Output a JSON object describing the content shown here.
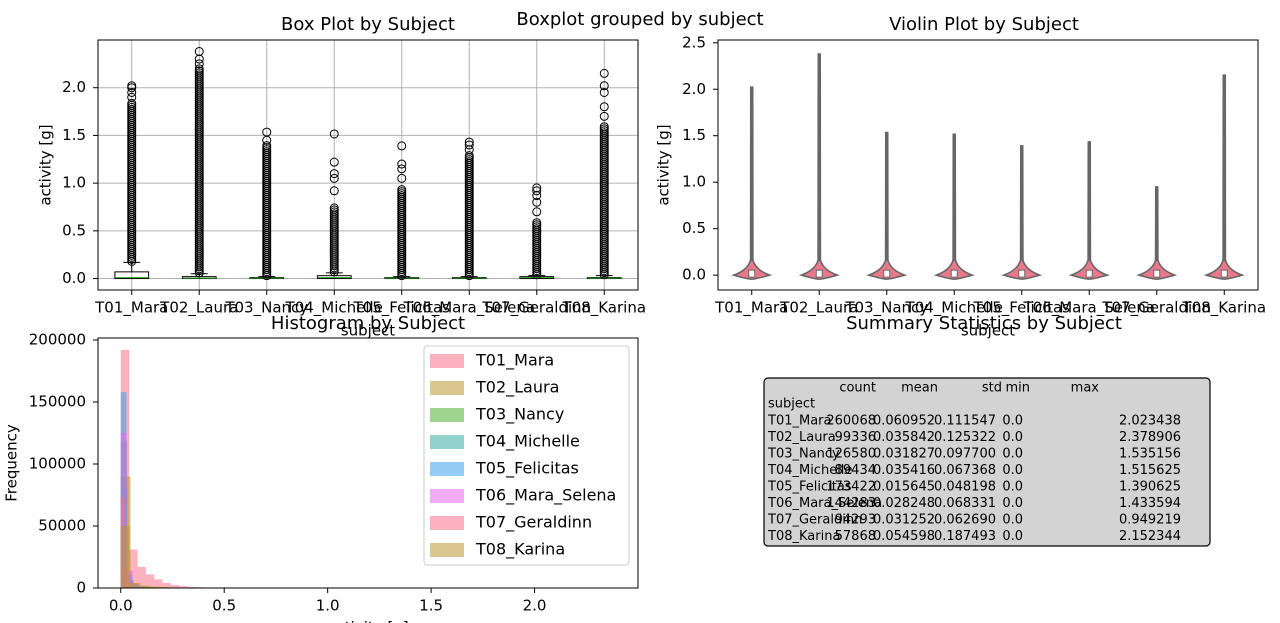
{
  "suptitle": "Boxplot grouped by subject",
  "chart_data": [
    {
      "type": "box",
      "title": "Box Plot by Subject",
      "xlabel": "subject",
      "ylabel": "activity [g]",
      "categories": [
        "T01_Mara",
        "T02_Laura",
        "T03_Nancy",
        "T04_Michelle",
        "T05_Felicitas",
        "T06_Mara_Selena",
        "T07_Geraldinn",
        "T08_Karina"
      ],
      "boxes": [
        {
          "whislo": 0.0,
          "q1": 0.0,
          "med": 0.01,
          "q3": 0.07,
          "whishi": 0.17,
          "flier_range": [
            0.18,
            1.85
          ],
          "fliers": [
            1.9,
            1.95,
            2.0,
            2.02
          ]
        },
        {
          "whislo": 0.0,
          "q1": 0.0,
          "med": 0.005,
          "q3": 0.02,
          "whishi": 0.05,
          "flier_range": [
            0.06,
            2.2
          ],
          "fliers": [
            2.25,
            2.3,
            2.38
          ]
        },
        {
          "whislo": 0.0,
          "q1": 0.0,
          "med": 0.005,
          "q3": 0.01,
          "whishi": 0.02,
          "flier_range": [
            0.03,
            1.4
          ],
          "fliers": [
            1.45,
            1.535
          ]
        },
        {
          "whislo": 0.0,
          "q1": 0.0,
          "med": 0.01,
          "q3": 0.03,
          "whishi": 0.06,
          "flier_range": [
            0.07,
            0.75
          ],
          "fliers": [
            0.92,
            1.05,
            1.1,
            1.22,
            1.515
          ]
        },
        {
          "whislo": 0.0,
          "q1": 0.0,
          "med": 0.005,
          "q3": 0.01,
          "whishi": 0.02,
          "flier_range": [
            0.03,
            0.95
          ],
          "fliers": [
            1.05,
            1.15,
            1.2,
            1.39
          ]
        },
        {
          "whislo": 0.0,
          "q1": 0.0,
          "med": 0.005,
          "q3": 0.01,
          "whishi": 0.02,
          "flier_range": [
            0.03,
            1.3
          ],
          "fliers": [
            1.35,
            1.4,
            1.43
          ]
        },
        {
          "whislo": 0.0,
          "q1": 0.0,
          "med": 0.01,
          "q3": 0.02,
          "whishi": 0.03,
          "flier_range": [
            0.04,
            0.6
          ],
          "fliers": [
            0.7,
            0.8,
            0.87,
            0.92,
            0.95
          ]
        },
        {
          "whislo": 0.0,
          "q1": 0.0,
          "med": 0.005,
          "q3": 0.01,
          "whishi": 0.03,
          "flier_range": [
            0.04,
            1.6
          ],
          "fliers": [
            1.7,
            1.8,
            1.95,
            2.02,
            2.15
          ]
        }
      ],
      "ylim": [
        -0.12,
        2.5
      ],
      "yticks": [
        {
          "value": 0,
          "label": "0.0"
        },
        0.5,
        {
          "value": 1,
          "label": "1.0"
        },
        1.5,
        {
          "value": 2,
          "label": "2.0"
        }
      ],
      "grid": true
    },
    {
      "type": "violin",
      "title": "Violin Plot by Subject",
      "xlabel": "subject",
      "ylabel": "activity [g]",
      "categories": [
        "T01_Mara",
        "T02_Laura",
        "T03_Nancy",
        "T04_Michelle",
        "T05_Felicitas",
        "T06_Mara_Selena",
        "T07_Geraldinn",
        "T08_Karina"
      ],
      "values": [
        2.023438,
        2.378906,
        1.535156,
        1.515625,
        1.390625,
        1.433594,
        0.949219,
        2.152344
      ],
      "color": "#e8788a",
      "ylim": [
        -0.16,
        2.53
      ],
      "yticks": [
        {
          "value": 0,
          "label": "0.0"
        },
        0.5,
        {
          "value": 1,
          "label": "1.0"
        },
        1.5,
        {
          "value": 2,
          "label": "2.0"
        },
        2.5
      ],
      "grid": false
    },
    {
      "type": "histogram",
      "title": "Histogram by Subject",
      "xlabel": "activity [g]",
      "ylabel": "Frequency",
      "alpha": 0.55,
      "legend": "upper right",
      "series": [
        {
          "name": "T01_Mara",
          "color": "#f77189",
          "bins": [
            0,
            0.0405,
            0.081,
            0.1215,
            0.162,
            0.2025,
            0.243,
            0.2835,
            0.324,
            0.3645,
            0.405,
            0.4455,
            0.486,
            0.5265
          ],
          "counts": [
            192000,
            31000,
            17000,
            11000,
            7000,
            4000,
            2500,
            1500,
            900,
            600,
            400,
            250,
            150
          ]
        },
        {
          "name": "T02_Laura",
          "color": "#bb9832",
          "bins": [
            0,
            0.0476,
            0.0952,
            0.1428,
            0.1904,
            0.238
          ],
          "counts": [
            90000,
            4000,
            2000,
            1200,
            800
          ]
        },
        {
          "name": "T03_Nancy",
          "color": "#50b131",
          "bins": [
            0,
            0.0307,
            0.0614,
            0.0921,
            0.1228
          ],
          "counts": [
            118000,
            6000,
            1500,
            600
          ]
        },
        {
          "name": "T04_Michelle",
          "color": "#36ada4",
          "bins": [
            0,
            0.0303,
            0.0606,
            0.0909,
            0.1212
          ],
          "counts": [
            80000,
            6000,
            2000,
            800
          ]
        },
        {
          "name": "T05_Felicitas",
          "color": "#3ba3ec",
          "bins": [
            0,
            0.0278,
            0.0556,
            0.0834,
            0.1112
          ],
          "counts": [
            158000,
            11000,
            3000,
            800
          ]
        },
        {
          "name": "T06_Mara_Selena",
          "color": "#e866f4",
          "bins": [
            0,
            0.0287,
            0.0574,
            0.0861,
            0.1148
          ],
          "counts": [
            125000,
            14000,
            3500,
            1000
          ]
        },
        {
          "name": "T07_Geraldinn",
          "color": "#f77189",
          "bins": [
            0,
            0.019,
            0.038,
            0.057,
            0.076
          ],
          "counts": [
            73000,
            15000,
            4500,
            1300
          ]
        },
        {
          "name": "T08_Karina",
          "color": "#bb9832",
          "bins": [
            0,
            0.043,
            0.086,
            0.129,
            0.172
          ],
          "counts": [
            50000,
            4000,
            1500,
            800
          ]
        }
      ],
      "xlim": [
        -0.11,
        2.5
      ],
      "xticks": [
        {
          "value": 0,
          "label": "0.0"
        },
        0.5,
        {
          "value": 1,
          "label": "1.0"
        },
        1.5,
        {
          "value": 2,
          "label": "2.0"
        }
      ],
      "ylim": [
        0,
        201600
      ],
      "yticks": [
        0,
        50000,
        100000,
        150000,
        200000
      ],
      "grid": false
    }
  ],
  "table": {
    "title": "Summary Statistics by Subject",
    "columns": [
      "count",
      "mean",
      "std",
      "min",
      "max"
    ],
    "index_name": "subject",
    "rows": [
      [
        "T01_Mara",
        "260068",
        "0.060952",
        "0.111547",
        "0.0",
        "2.023438"
      ],
      [
        "T02_Laura",
        "99336",
        "0.035842",
        "0.125322",
        "0.0",
        "2.378906"
      ],
      [
        "T03_Nancy",
        "126580",
        "0.031827",
        "0.097700",
        "0.0",
        "1.535156"
      ],
      [
        "T04_Michelle",
        "89434",
        "0.035416",
        "0.067368",
        "0.0",
        "1.515625"
      ],
      [
        "T05_Felicitas",
        "173422",
        "0.015645",
        "0.048198",
        "0.0",
        "1.390625"
      ],
      [
        "T06_Mara_Selena",
        "144283",
        "0.028248",
        "0.068331",
        "0.0",
        "1.433594"
      ],
      [
        "T07_Geraldinn",
        "94293",
        "0.031252",
        "0.062690",
        "0.0",
        "0.949219"
      ],
      [
        "T08_Karina",
        "57868",
        "0.054598",
        "0.187493",
        "0.0",
        "2.152344"
      ]
    ]
  }
}
